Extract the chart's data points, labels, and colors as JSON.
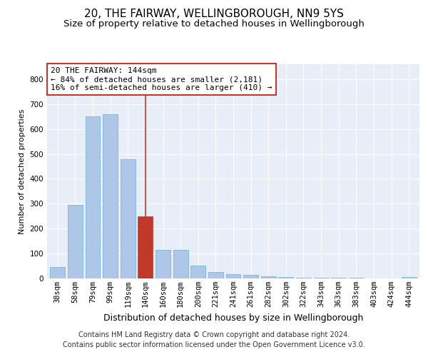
{
  "title1": "20, THE FAIRWAY, WELLINGBOROUGH, NN9 5YS",
  "title2": "Size of property relative to detached houses in Wellingborough",
  "xlabel": "Distribution of detached houses by size in Wellingborough",
  "ylabel": "Number of detached properties",
  "categories": [
    "38sqm",
    "58sqm",
    "79sqm",
    "99sqm",
    "119sqm",
    "140sqm",
    "160sqm",
    "180sqm",
    "200sqm",
    "221sqm",
    "241sqm",
    "261sqm",
    "282sqm",
    "302sqm",
    "322sqm",
    "343sqm",
    "363sqm",
    "383sqm",
    "403sqm",
    "424sqm",
    "444sqm"
  ],
  "values": [
    47,
    295,
    650,
    660,
    480,
    250,
    115,
    115,
    52,
    27,
    17,
    13,
    8,
    5,
    4,
    3,
    2,
    2,
    1,
    1,
    7
  ],
  "highlight_index": 5,
  "bar_color": "#aec6e8",
  "bar_edge_color": "#6baed6",
  "highlight_bar_color": "#c0392b",
  "highlight_bar_edge_color": "#c0392b",
  "vline_x_index": 5,
  "vline_color": "#c0392b",
  "annotation_box_text": "20 THE FAIRWAY: 144sqm\n← 84% of detached houses are smaller (2,181)\n16% of semi-detached houses are larger (410) →",
  "ylim": [
    0,
    860
  ],
  "yticks": [
    0,
    100,
    200,
    300,
    400,
    500,
    600,
    700,
    800
  ],
  "bg_color": "#e8eef7",
  "footer_text": "Contains HM Land Registry data © Crown copyright and database right 2024.\nContains public sector information licensed under the Open Government Licence v3.0.",
  "title1_fontsize": 11,
  "title2_fontsize": 9.5,
  "xlabel_fontsize": 9,
  "ylabel_fontsize": 8,
  "tick_fontsize": 7.5,
  "annotation_fontsize": 8,
  "footer_fontsize": 7
}
